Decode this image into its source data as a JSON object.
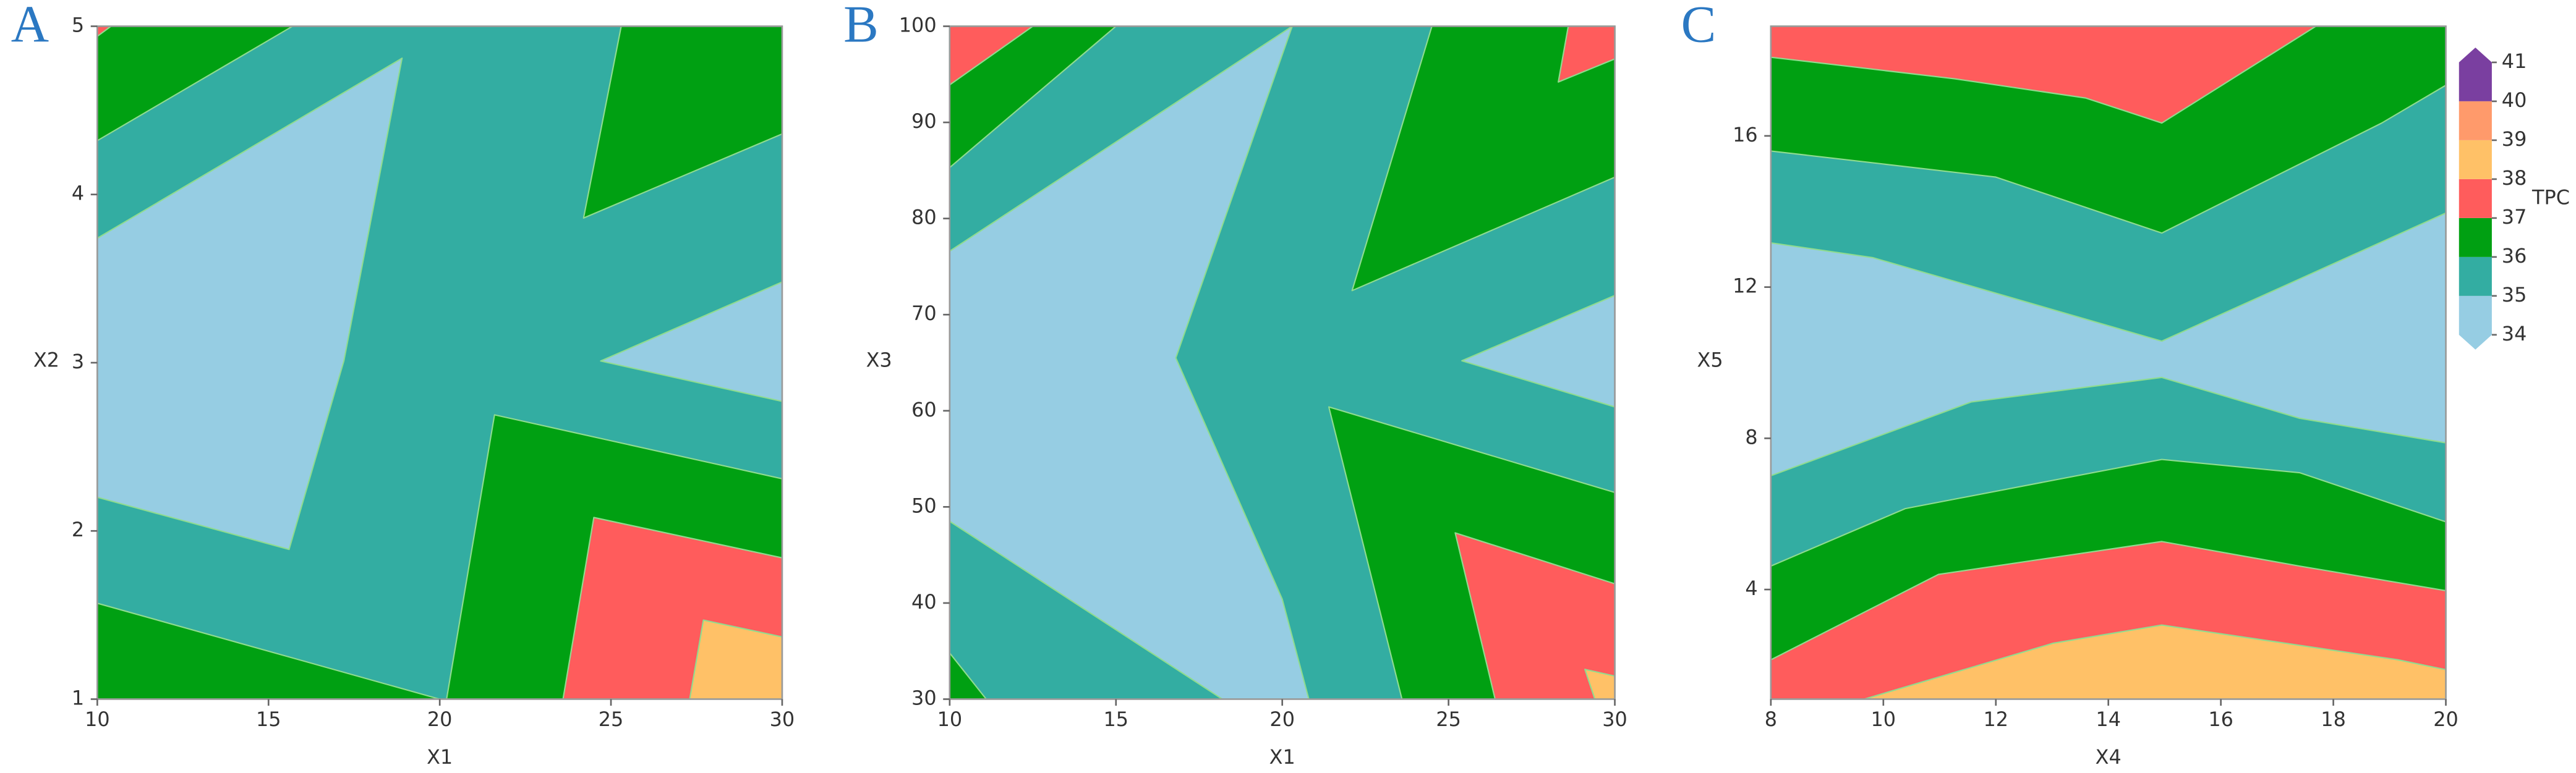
{
  "chart_data": [
    {
      "type": "contour",
      "label": "A",
      "xlabel": "X1",
      "ylabel": "X2",
      "xlim": [
        10,
        30
      ],
      "ylim": [
        1,
        5
      ],
      "xticks": [
        10,
        15,
        20,
        25,
        30
      ],
      "yticks": [
        1,
        2,
        3,
        4,
        5
      ],
      "background": 35,
      "regions": [
        {
          "level": 36,
          "points": [
            [
              10,
              5
            ],
            [
              15.7,
              5
            ],
            [
              10,
              4.32
            ]
          ]
        },
        {
          "level": 37,
          "points": [
            [
              10,
              5
            ],
            [
              10.4,
              5
            ],
            [
              10,
              4.94
            ]
          ]
        },
        {
          "level": 34,
          "points": [
            [
              10,
              3.74
            ],
            [
              18.9,
              4.81
            ],
            [
              17.2,
              3.01
            ],
            [
              15.6,
              1.89
            ],
            [
              10,
              2.2
            ]
          ]
        },
        {
          "level": 34,
          "points": [
            [
              24.7,
              3.01
            ],
            [
              30,
              3.48
            ],
            [
              30,
              2.77
            ]
          ]
        },
        {
          "level": 36,
          "points": [
            [
              25.3,
              5
            ],
            [
              30,
              5
            ],
            [
              30,
              4.36
            ],
            [
              24.2,
              3.86
            ]
          ]
        },
        {
          "level": 36,
          "points": [
            [
              10,
              1.57
            ],
            [
              20,
              1
            ],
            [
              10,
              1
            ]
          ]
        },
        {
          "level": 36,
          "points": [
            [
              21.6,
              2.69
            ],
            [
              30,
              2.31
            ],
            [
              30,
              1
            ],
            [
              20.2,
              1
            ]
          ]
        },
        {
          "level": 37,
          "points": [
            [
              24.5,
              2.08
            ],
            [
              30,
              1.84
            ],
            [
              30,
              1
            ],
            [
              23.6,
              1
            ]
          ]
        },
        {
          "level": 38,
          "points": [
            [
              27.7,
              1.47
            ],
            [
              30,
              1.37
            ],
            [
              30,
              1
            ],
            [
              27.3,
              1
            ]
          ]
        }
      ]
    },
    {
      "type": "contour",
      "label": "B",
      "xlabel": "X1",
      "ylabel": "X3",
      "xlim": [
        10,
        30
      ],
      "ylim": [
        30,
        100
      ],
      "xticks": [
        10,
        15,
        20,
        25,
        30
      ],
      "yticks": [
        30,
        40,
        50,
        60,
        70,
        80,
        90,
        100
      ],
      "background": 35,
      "regions": [
        {
          "level": 36,
          "points": [
            [
              10,
              100
            ],
            [
              15,
              100
            ],
            [
              10,
              85.3
            ]
          ]
        },
        {
          "level": 37,
          "points": [
            [
              10,
              100
            ],
            [
              12.5,
              100
            ],
            [
              10,
              93.9
            ]
          ]
        },
        {
          "level": 34,
          "points": [
            [
              10,
              76.6
            ],
            [
              20.3,
              100
            ],
            [
              16.8,
              65.5
            ],
            [
              20,
              40.4
            ],
            [
              20.8,
              30
            ],
            [
              18.2,
              30
            ],
            [
              10,
              48.5
            ]
          ]
        },
        {
          "level": 34,
          "points": [
            [
              25.4,
              65.2
            ],
            [
              30,
              72
            ],
            [
              30,
              60.4
            ]
          ]
        },
        {
          "level": 36,
          "points": [
            [
              24.5,
              100
            ],
            [
              30,
              100
            ],
            [
              30,
              84.3
            ],
            [
              22.1,
              72.5
            ]
          ]
        },
        {
          "level": 37,
          "points": [
            [
              28.6,
              100
            ],
            [
              30,
              100
            ],
            [
              30,
              96.6
            ],
            [
              28.3,
              94.2
            ]
          ]
        },
        {
          "level": 36,
          "points": [
            [
              21.4,
              60.4
            ],
            [
              30,
              51.5
            ],
            [
              30,
              30
            ],
            [
              23.6,
              30
            ]
          ]
        },
        {
          "level": 37,
          "points": [
            [
              25.2,
              47.3
            ],
            [
              30,
              42
            ],
            [
              30,
              30
            ],
            [
              26.4,
              30
            ]
          ]
        },
        {
          "level": 38,
          "points": [
            [
              29.1,
              33.1
            ],
            [
              30,
              32.4
            ],
            [
              30,
              30
            ],
            [
              29.4,
              30
            ]
          ]
        },
        {
          "level": 36,
          "points": [
            [
              10,
              34.8
            ],
            [
              11.1,
              30
            ],
            [
              10,
              30
            ]
          ]
        }
      ]
    },
    {
      "type": "contour",
      "label": "C",
      "xlabel": "X4",
      "ylabel": "X5",
      "xlim": [
        8,
        20
      ],
      "ylim": [
        1.1,
        18.9
      ],
      "xticks": [
        8,
        10,
        12,
        14,
        16,
        18,
        20
      ],
      "yticks": [
        4,
        8,
        12,
        16
      ],
      "background": 35,
      "regions": [
        {
          "level": 36,
          "points": [
            [
              8,
              18.9
            ],
            [
              20,
              18.9
            ],
            [
              20,
              17.34
            ],
            [
              18.86,
              16.34
            ],
            [
              14.95,
              13.43
            ],
            [
              12,
              14.91
            ],
            [
              8,
              15.6
            ]
          ]
        },
        {
          "level": 37,
          "points": [
            [
              8,
              18.9
            ],
            [
              17.69,
              18.9
            ],
            [
              14.95,
              16.34
            ],
            [
              13.6,
              17.0
            ],
            [
              11.27,
              17.51
            ],
            [
              8,
              18.08
            ]
          ]
        },
        {
          "level": 34,
          "points": [
            [
              8,
              13.17
            ],
            [
              9.81,
              12.78
            ],
            [
              14.95,
              10.57
            ],
            [
              20,
              13.96
            ],
            [
              20,
              7.88
            ],
            [
              17.4,
              8.53
            ],
            [
              14.95,
              9.61
            ],
            [
              11.56,
              8.96
            ],
            [
              8,
              7.01
            ]
          ]
        },
        {
          "level": 36,
          "points": [
            [
              8,
              4.62
            ],
            [
              10.39,
              6.14
            ],
            [
              14.95,
              7.44
            ],
            [
              17.4,
              7.09
            ],
            [
              20,
              5.79
            ],
            [
              20,
              1.1
            ],
            [
              8,
              1.1
            ]
          ]
        },
        {
          "level": 37,
          "points": [
            [
              8,
              2.14
            ],
            [
              10.98,
              4.4
            ],
            [
              14.95,
              5.27
            ],
            [
              17.4,
              4.62
            ],
            [
              20,
              3.97
            ],
            [
              20,
              1.1
            ],
            [
              8,
              1.1
            ]
          ]
        },
        {
          "level": 38,
          "points": [
            [
              9.66,
              1.1
            ],
            [
              13.02,
              2.58
            ],
            [
              14.95,
              3.06
            ],
            [
              19.15,
              2.14
            ],
            [
              20,
              1.88
            ],
            [
              20,
              1.1
            ]
          ]
        }
      ]
    }
  ],
  "colorbar": {
    "title": "TPC",
    "levels": [
      34,
      35,
      36,
      37,
      38,
      39,
      40,
      41
    ],
    "colors": [
      "#96cde3",
      "#33ada2",
      "#00a012",
      "#ff5c5c",
      "#ffc167",
      "#ff9a6b",
      "#7a3fa0"
    ]
  }
}
